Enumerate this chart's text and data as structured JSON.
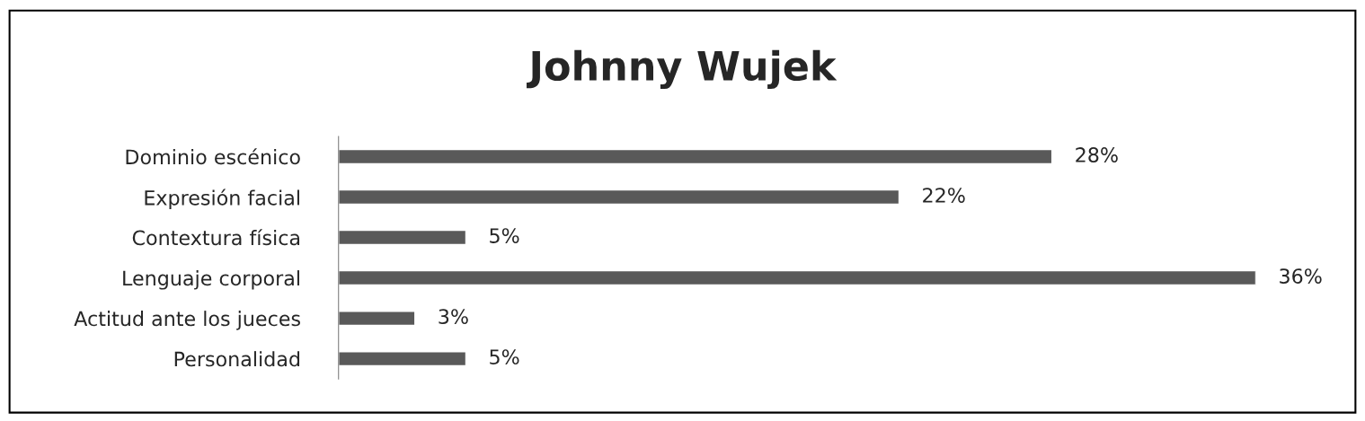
{
  "chart_data": {
    "type": "bar",
    "orientation": "horizontal",
    "title": "Johnny Wujek",
    "categories": [
      "Dominio escénico",
      "Expresión facial",
      "Contextura física",
      "Lenguaje corporal",
      "Actitud ante los jueces",
      "Personalidad"
    ],
    "values": [
      28,
      22,
      5,
      36,
      3,
      5
    ],
    "value_labels": [
      "28%",
      "22%",
      "5%",
      "36%",
      "3%",
      "5%"
    ],
    "color": "#595959",
    "grid": false,
    "legend": false
  }
}
